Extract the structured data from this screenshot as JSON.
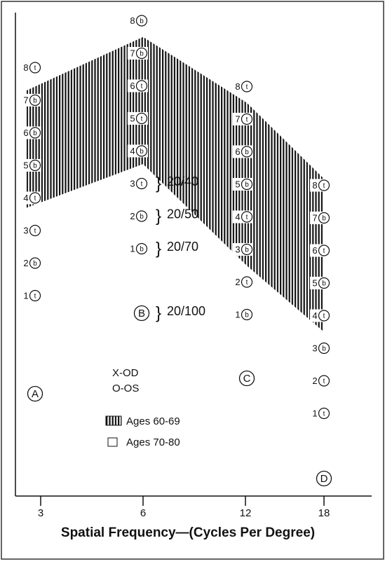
{
  "chart_data": {
    "type": "contrast-chart",
    "x_label": "Spatial Frequency—(Cycles Per Degree)",
    "categories": [
      "3",
      "6",
      "12",
      "18"
    ],
    "levels": [
      1,
      2,
      3,
      4,
      5,
      6,
      7,
      8
    ],
    "columns": [
      {
        "name": "A",
        "codes": [
          "t",
          "b",
          "t",
          "t",
          "b",
          "b",
          "b",
          "t"
        ]
      },
      {
        "name": "B",
        "codes": [
          "b",
          "b",
          "t",
          "b",
          "t",
          "t",
          "b",
          "b"
        ]
      },
      {
        "name": "C",
        "codes": [
          "b",
          "t",
          "b",
          "t",
          "b",
          "b",
          "t",
          "t"
        ]
      },
      {
        "name": "D",
        "codes": [
          "t",
          "t",
          "b",
          "t",
          "b",
          "t",
          "b",
          "t"
        ]
      }
    ],
    "band": {
      "name": "Ages 60-69",
      "upper": [
        7.3,
        7.5,
        7.5,
        8.2
      ],
      "lower": [
        3.7,
        3.6,
        2.5,
        3.5
      ]
    },
    "acuity": [
      "20/40",
      "20/50",
      "20/70",
      "20/100"
    ],
    "eye_key": [
      "X-OD",
      "O-OS"
    ],
    "legend": [
      "Ages 60-69",
      "Ages 70-80"
    ]
  }
}
